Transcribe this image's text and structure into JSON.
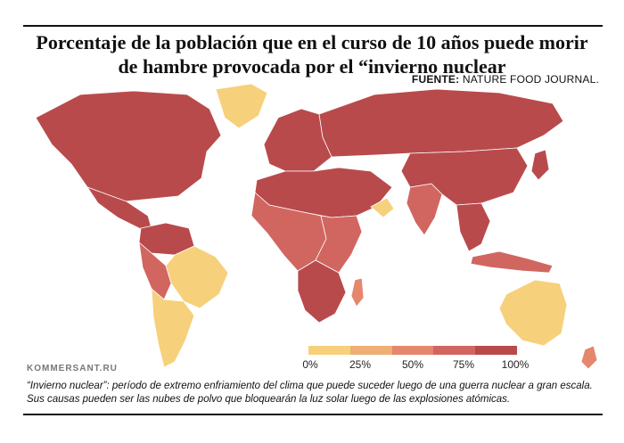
{
  "title": "Porcentaje de la población que en el curso de 10 años puede morir de hambre provocada por el “invierno nuclear",
  "source_label": "FUENTE:",
  "source_value": "NATURE FOOD JOURNAL.",
  "credit": "KOMMERSANT.RU",
  "legend": {
    "ticks": [
      "0%",
      "25%",
      "50%",
      "75%",
      "100%"
    ],
    "colors": [
      "#f7d07c",
      "#efae73",
      "#e4876d",
      "#d16661",
      "#b94a4c"
    ]
  },
  "footnote": {
    "lead": "“Invierno nuclear”",
    "text": ": período de extremo enfriamiento del clima que puede suceder luego de una guerra nuclear a gran escala. Sus causas pueden ser las nubes de polvo que bloquearán la luz solar luego de las explosiones atómicas."
  },
  "regions": [
    {
      "id": "north-america",
      "level": 4
    },
    {
      "id": "greenland",
      "level": 0
    },
    {
      "id": "mexico-central-america",
      "level": 4
    },
    {
      "id": "caribbean-north-south-america",
      "level": 4
    },
    {
      "id": "brazil",
      "level": 0
    },
    {
      "id": "andes-west",
      "level": 3
    },
    {
      "id": "argentina-chile",
      "level": 0
    },
    {
      "id": "europe",
      "level": 4
    },
    {
      "id": "russia-north-asia",
      "level": 4
    },
    {
      "id": "north-africa-middle-east",
      "level": 4
    },
    {
      "id": "arabian-peninsula-coast",
      "level": 0
    },
    {
      "id": "west-central-africa",
      "level": 3
    },
    {
      "id": "east-africa",
      "level": 3
    },
    {
      "id": "southern-africa",
      "level": 4
    },
    {
      "id": "madagascar",
      "level": 2
    },
    {
      "id": "india",
      "level": 3
    },
    {
      "id": "china",
      "level": 4
    },
    {
      "id": "southeast-asia",
      "level": 4
    },
    {
      "id": "japan",
      "level": 4
    },
    {
      "id": "indonesia",
      "level": 3
    },
    {
      "id": "australia",
      "level": 0
    },
    {
      "id": "new-zealand",
      "level": 2
    }
  ]
}
